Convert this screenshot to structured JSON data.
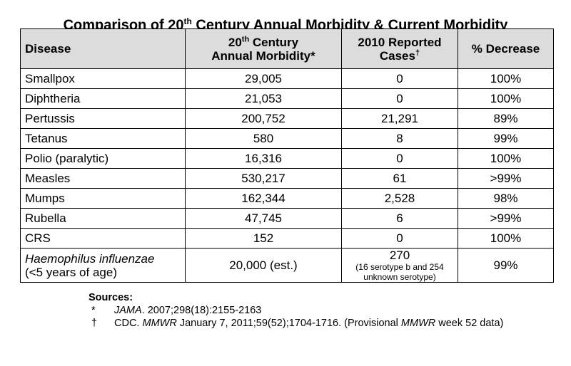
{
  "title": {
    "prefix": "Comparison of 20",
    "sup": "th",
    "suffix": " Century Annual Morbidity & Current Morbidity"
  },
  "table": {
    "headers": {
      "disease": "Disease",
      "annual_line1_prefix": "20",
      "annual_line1_sup": "th",
      "annual_line1_suffix": " Century",
      "annual_line2": "Annual Morbidity*",
      "reported_line1": "2010 Reported",
      "reported_line2": "Cases",
      "reported_mark": "†",
      "decrease": "% Decrease"
    },
    "rows": [
      {
        "disease": "Smallpox",
        "annual": "29,005",
        "reported": "0",
        "decrease": "100%"
      },
      {
        "disease": "Diphtheria",
        "annual": "21,053",
        "reported": "0",
        "decrease": "100%"
      },
      {
        "disease": "Pertussis",
        "annual": "200,752",
        "reported": "21,291",
        "decrease": "89%"
      },
      {
        "disease": "Tetanus",
        "annual": "580",
        "reported": "8",
        "decrease": "99%"
      },
      {
        "disease": "Polio (paralytic)",
        "annual": "16,316",
        "reported": "0",
        "decrease": "100%"
      },
      {
        "disease": "Measles",
        "annual": "530,217",
        "reported": "61",
        "decrease": ">99%"
      },
      {
        "disease": "Mumps",
        "annual": "162,344",
        "reported": "2,528",
        "decrease": "98%"
      },
      {
        "disease": "Rubella",
        "annual": "47,745",
        "reported": "6",
        "decrease": ">99%"
      },
      {
        "disease": "CRS",
        "annual": "152",
        "reported": "0",
        "decrease": "100%"
      }
    ],
    "last_row": {
      "disease_italic": "Haemophilus influenzae",
      "disease_line2": "(<5 years of age)",
      "annual": "20,000 (est.)",
      "reported": "270",
      "reported_note_line1": "(16 serotype b and 254",
      "reported_note_line2": "unknown serotype)",
      "decrease": "99%"
    }
  },
  "sources": {
    "heading": "Sources:",
    "items": [
      {
        "mark": "*",
        "italic": "JAMA",
        "text": ". 2007;298(18):2155-2163"
      },
      {
        "mark": "†",
        "prefix": "CDC. ",
        "italic": "MMWR",
        "middle": " January 7, 2011;59(52);1704-1716. (Provisional ",
        "italic2": "MMWR",
        "suffix": " week 52 data)"
      }
    ]
  }
}
